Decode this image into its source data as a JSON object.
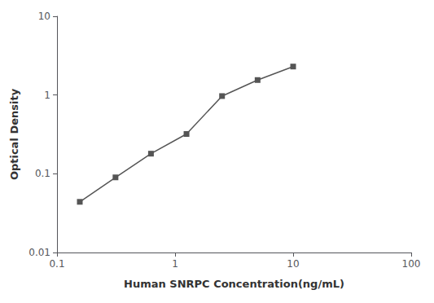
{
  "chart_data": {
    "type": "line",
    "x": [
      0.156,
      0.313,
      0.625,
      1.25,
      2.5,
      5.0,
      10.0
    ],
    "values": [
      0.044,
      0.09,
      0.18,
      0.32,
      0.97,
      1.55,
      2.3
    ],
    "xlabel": "Human SNRPC Concentration(ng/mL)",
    "ylabel": "Optical Density",
    "xlim": [
      0.1,
      100
    ],
    "ylim": [
      0.01,
      10
    ],
    "xticks": [
      0.1,
      1,
      10,
      100
    ],
    "yticks": [
      0.01,
      0.1,
      1,
      10
    ],
    "log": true,
    "grid": false,
    "color": "#555555",
    "marker": "square",
    "line_style": "solid"
  }
}
